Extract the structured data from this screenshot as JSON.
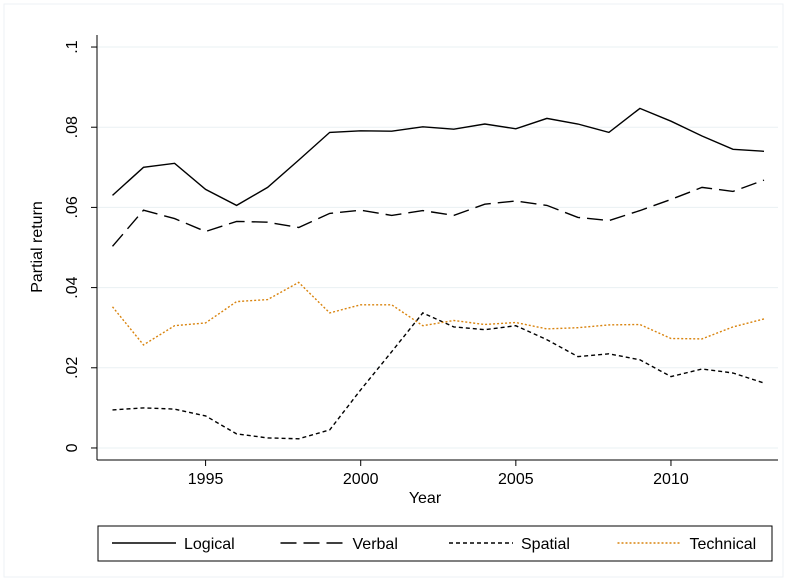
{
  "chart_data": {
    "type": "line",
    "x_label": "Year",
    "y_label": "Partial return",
    "x": [
      1992,
      1993,
      1994,
      1995,
      1996,
      1997,
      1998,
      1999,
      2000,
      2001,
      2002,
      2003,
      2004,
      2005,
      2006,
      2007,
      2008,
      2009,
      2010,
      2011,
      2012,
      2013
    ],
    "series": [
      {
        "name": "Logical",
        "color": "#000000",
        "dash": "solid",
        "values": [
          0.063,
          0.07,
          0.071,
          0.0645,
          0.0605,
          0.065,
          0.0718,
          0.0787,
          0.0791,
          0.079,
          0.0801,
          0.0795,
          0.0808,
          0.0796,
          0.0822,
          0.0808,
          0.0787,
          0.0847,
          0.0815,
          0.0778,
          0.0745,
          0.074
        ]
      },
      {
        "name": "Verbal",
        "color": "#000000",
        "dash": "long",
        "values": [
          0.0503,
          0.0593,
          0.0572,
          0.054,
          0.0565,
          0.0563,
          0.055,
          0.0585,
          0.0593,
          0.058,
          0.0592,
          0.058,
          0.0608,
          0.0616,
          0.0605,
          0.0575,
          0.0567,
          0.0592,
          0.062,
          0.065,
          0.064,
          0.0668
        ]
      },
      {
        "name": "Spatial",
        "color": "#000000",
        "dash": "short",
        "values": [
          0.0095,
          0.01,
          0.0097,
          0.008,
          0.0035,
          0.0025,
          0.0023,
          0.0045,
          0.0145,
          0.024,
          0.0337,
          0.0302,
          0.0295,
          0.0305,
          0.027,
          0.0228,
          0.0235,
          0.022,
          0.0178,
          0.0197,
          0.0187,
          0.0162
        ]
      },
      {
        "name": "Technical",
        "color": "#d9840f",
        "dash": "dot",
        "values": [
          0.0352,
          0.0257,
          0.0305,
          0.0312,
          0.0365,
          0.037,
          0.0413,
          0.0337,
          0.0357,
          0.0357,
          0.0305,
          0.0318,
          0.0308,
          0.0313,
          0.0297,
          0.03,
          0.0307,
          0.0308,
          0.0273,
          0.0272,
          0.0302,
          0.0322
        ]
      }
    ],
    "xlim": [
      1991.5,
      2013.45
    ],
    "ylim": [
      -0.003,
      0.103
    ],
    "xticks": [
      1995,
      2000,
      2005,
      2010
    ],
    "yticks": [
      0,
      {
        "value": 0.02,
        "label": ".02"
      },
      {
        "value": 0.04,
        "label": ".04"
      },
      {
        "value": 0.06,
        "label": ".06"
      },
      {
        "value": 0.08,
        "label": ".08"
      },
      {
        "value": 0.1,
        "label": ".1"
      }
    ],
    "grid": true,
    "legend": "bottom"
  }
}
